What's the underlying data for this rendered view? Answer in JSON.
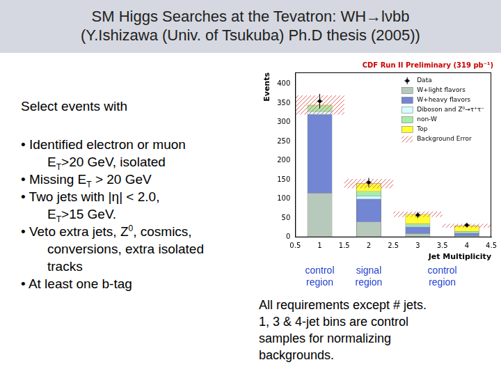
{
  "header": {
    "title_lines": [
      "SM Higgs Searches at the Tevatron: WH→lνbb",
      "(Y.Ishizawa (Univ. of Tsukuba) Ph.D thesis (2005))"
    ]
  },
  "selection": {
    "intro": "Select events with",
    "bullets": [
      [
        [
          "• Identified electron or muon"
        ],
        [
          "E",
          {
            "sub": "T"
          },
          ">20 GeV, isolated"
        ]
      ],
      [
        [
          "• Missing E",
          {
            "sub": "T"
          },
          " > 20 GeV"
        ]
      ],
      [
        [
          "• Two jets with |η| < 2.0,"
        ],
        [
          "E",
          {
            "sub": "T"
          },
          ">15 GeV."
        ]
      ],
      [
        [
          "•  Veto extra jets, Z",
          {
            "sup": "0"
          },
          ", cosmics,"
        ],
        [
          "conversions, extra isolated"
        ],
        [
          "tracks"
        ]
      ],
      [
        [
          "• At least one b-tag"
        ]
      ]
    ]
  },
  "note_lines": [
    "All requirements except # jets.",
    "1, 3 & 4-jet bins are control",
    "samples for normalizing",
    "backgrounds."
  ],
  "chart_data": {
    "type": "bar",
    "title": "CDF Run II Preliminary (319 pb⁻¹)",
    "xlabel": "Jet Multiplicity",
    "ylabel": "Events",
    "stacked": true,
    "grid": false,
    "legend": "upper right",
    "x": [
      1,
      2,
      3,
      4
    ],
    "bins": [
      0.5,
      1.5,
      2.5,
      3.5,
      4.5
    ],
    "xlim": [
      0.5,
      4.5
    ],
    "xticks": [
      0.5,
      1,
      1.5,
      2,
      2.5,
      3,
      3.5,
      4,
      4.5
    ],
    "ylim": [
      0,
      430
    ],
    "yticks": [
      0,
      50,
      100,
      150,
      200,
      250,
      300,
      350,
      400
    ],
    "series": [
      {
        "name": "Data",
        "type": "scatter",
        "marker": "circle",
        "color": "#000000",
        "values": [
          355,
          143,
          58,
          32
        ],
        "errors": [
          19,
          12,
          8,
          6
        ]
      },
      {
        "name": "W+light flavors",
        "color": "#b7c9bb",
        "values": [
          115,
          40,
          10,
          4
        ]
      },
      {
        "name": "W+heavy flavors",
        "color": "#7286d3",
        "values": [
          205,
          60,
          17,
          7
        ]
      },
      {
        "name": "Diboson and Z⁰→τ⁺τ⁻",
        "color": "#d4ffff",
        "values": [
          8,
          8,
          2,
          1
        ]
      },
      {
        "name": "non-W",
        "color": "#a8eca8",
        "values": [
          15,
          12,
          6,
          3
        ]
      },
      {
        "name": "Top",
        "color": "#ffff33",
        "values": [
          2,
          20,
          25,
          15
        ]
      },
      {
        "name": "Background Error",
        "type": "error_band",
        "color": "#e06868",
        "values": [
          25,
          12,
          7,
          5
        ]
      }
    ],
    "region_labels": [
      {
        "text": "control region",
        "from": 0.5,
        "to": 1.5
      },
      {
        "text": "signal region",
        "from": 1.5,
        "to": 2.5
      },
      {
        "text": "control region",
        "from": 2.5,
        "to": 4.5
      }
    ]
  }
}
